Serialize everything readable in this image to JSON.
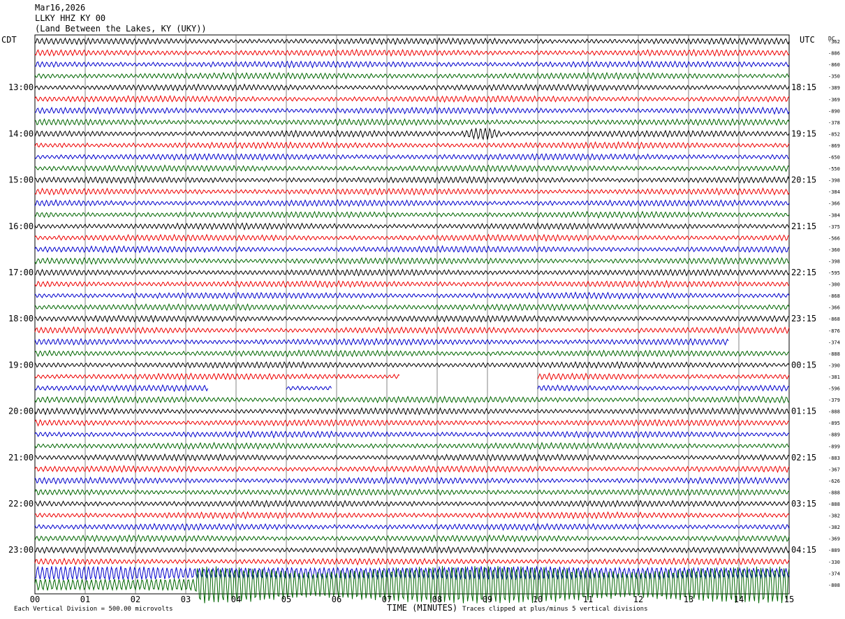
{
  "header": {
    "date": "Mar16,2026",
    "station": "LLKY HHZ KY 00",
    "location": "(Land Between the Lakes, KY (UKY))"
  },
  "left_axis_title": "CDT",
  "right_axis_title": "UTC",
  "dc_label": "DC",
  "footer": {
    "scale_note": "Each Vertical Division = 500.00 microvolts",
    "xlabel": "TIME (MINUTES)",
    "clip_note": "Traces clipped at plus/minus 5 vertical divisions"
  },
  "chart_data": {
    "type": "helicorder",
    "title": "LLKY HHZ KY 00",
    "xlabel": "TIME (MINUTES)",
    "x_ticks": [
      "00",
      "01",
      "02",
      "03",
      "04",
      "05",
      "06",
      "07",
      "08",
      "09",
      "10",
      "11",
      "12",
      "13",
      "14",
      "15"
    ],
    "xlim": [
      0,
      15
    ],
    "line_interval_minutes": 15,
    "grid": true,
    "trace_colors": [
      "#000000",
      "#ee0000",
      "#0000cc",
      "#006600"
    ],
    "cdt_hour_labels": [
      "13:00",
      "14:00",
      "15:00",
      "16:00",
      "17:00",
      "18:00",
      "19:00",
      "20:00",
      "21:00",
      "22:00",
      "23:00"
    ],
    "utc_labels": [
      "18:15",
      "19:15",
      "20:15",
      "21:15",
      "22:15",
      "23:15",
      "00:15",
      "01:15",
      "02:15",
      "03:15",
      "04:15"
    ],
    "first_labeled_row": 4,
    "dc_offsets": [
      "-362",
      "-886",
      "-860",
      "-350",
      "-389",
      "-369",
      "-890",
      "-378",
      "-852",
      "-869",
      "-650",
      "-550",
      "-398",
      "-384",
      "-366",
      "-384",
      "-375",
      "-566",
      "-360",
      "-398",
      "-595",
      "-300",
      "-868",
      "-366",
      "-868",
      "-876",
      "-374",
      "-888",
      "-390",
      "-381",
      "-596",
      "-379",
      "-888",
      "-895",
      "-889",
      "-899",
      "-883",
      "-367",
      "-626",
      "-888",
      "-888",
      "-382",
      "-382",
      "-369",
      "-889",
      "-330",
      "-374",
      "-808"
    ],
    "trace_count": 48,
    "traces_with_gaps": [
      {
        "row": 26,
        "end_minute": 13.8
      },
      {
        "row": 29,
        "end_minute": 7.25
      },
      {
        "row": 29,
        "start_minute": 10.0,
        "end_minute": 15.0
      },
      {
        "row": 30,
        "start_minute": 0.0,
        "end_minute": 3.45
      },
      {
        "row": 30,
        "start_minute": 5.0,
        "end_minute": 5.9
      },
      {
        "row": 30,
        "start_minute": 10.0,
        "end_minute": 15.0
      }
    ],
    "event_rows": [
      8,
      46,
      47
    ]
  }
}
